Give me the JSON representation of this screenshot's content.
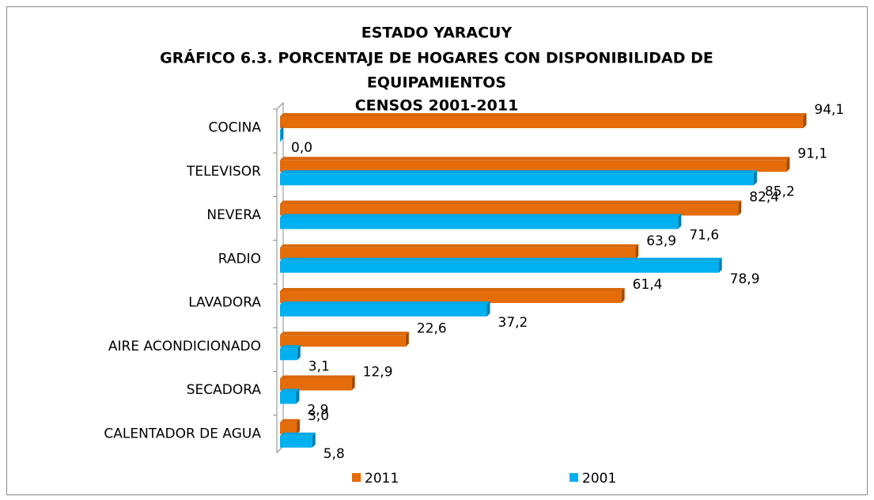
{
  "chart_data": {
    "type": "bar",
    "orientation": "horizontal",
    "title": [
      "ESTADO YARACUY",
      "GRÁFICO 6.3. PORCENTAJE DE HOGARES CON DISPONIBILIDAD  DE",
      "EQUIPAMIENTOS",
      "CENSOS 2001-2011"
    ],
    "categories": [
      "COCINA",
      "TELEVISOR",
      "NEVERA",
      "RADIO",
      "LAVADORA",
      "AIRE ACONDICIONADO",
      "SECADORA",
      "CALENTADOR DE AGUA"
    ],
    "series": [
      {
        "name": "2011",
        "color": "#e46c0a",
        "values": [
          94.1,
          91.1,
          82.4,
          63.9,
          61.4,
          22.6,
          12.9,
          3.0
        ],
        "value_labels": [
          "94,1",
          "91,1",
          "82,4",
          "63,9",
          "61,4",
          "22,6",
          "12,9",
          "3,0"
        ]
      },
      {
        "name": "2001",
        "color": "#00b0f0",
        "values": [
          0.0,
          85.2,
          71.6,
          78.9,
          37.2,
          3.1,
          2.9,
          5.8
        ],
        "value_labels": [
          "0,0",
          "85,2",
          "71,6",
          "78,9",
          "37,2",
          "3,1",
          "2,9",
          "5,8"
        ]
      }
    ],
    "xlim": [
      0,
      100
    ],
    "legend": "bottom"
  }
}
